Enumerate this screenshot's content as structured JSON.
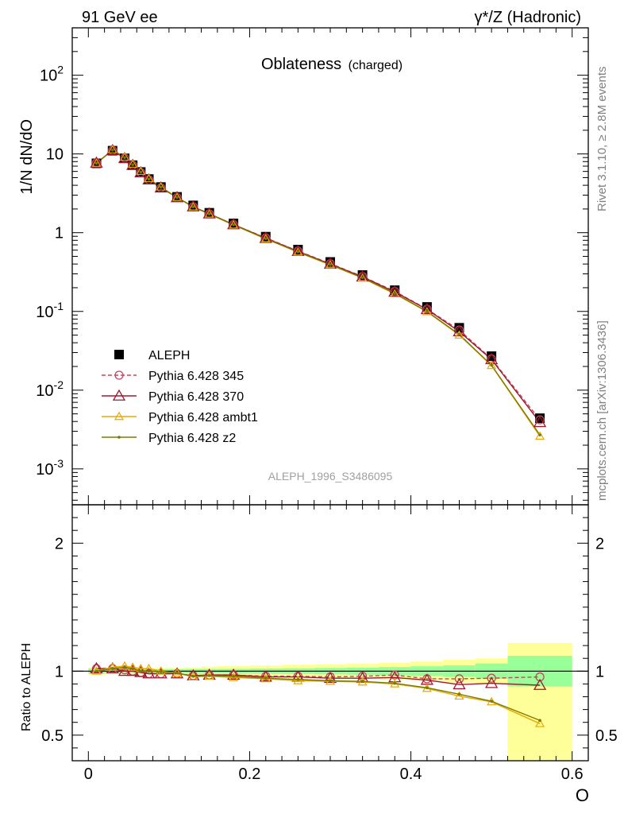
{
  "header": {
    "left_label": "91 GeV ee",
    "right_label": "γ*/Z (Hadronic)"
  },
  "side_text": {
    "rivet": "Rivet 3.1.10, ≥ 2.8M events",
    "mcplots": "mcplots.cern.ch [arXiv:1306.3436]"
  },
  "chart_data": [
    {
      "type": "line",
      "title": "Oblateness",
      "subtitle": "(charged)",
      "ylabel": "1/N dN/dO",
      "yscale": "log",
      "ylim": [
        0.00035,
        400
      ],
      "xlim": [
        -0.02,
        0.62
      ],
      "watermark": "ALEPH_1996_S3486095",
      "legend_position": "lower-left",
      "y_tick_labels": [
        "10^-3",
        "10^-2",
        "10^-1",
        "1",
        "10",
        "10^2"
      ],
      "x": [
        0.01,
        0.03,
        0.045,
        0.055,
        0.065,
        0.075,
        0.09,
        0.11,
        0.13,
        0.15,
        0.18,
        0.22,
        0.26,
        0.3,
        0.34,
        0.38,
        0.42,
        0.46,
        0.5,
        0.56
      ],
      "series": [
        {
          "name": "ALEPH",
          "color": "#000000",
          "style": "data",
          "values": [
            7.6,
            11.0,
            8.8,
            7.2,
            5.9,
            4.8,
            3.8,
            2.85,
            2.22,
            1.79,
            1.31,
            0.89,
            0.61,
            0.425,
            0.29,
            0.186,
            0.114,
            0.062,
            0.027,
            0.0044
          ]
        },
        {
          "name": "Pythia 6.428 345",
          "color": "#c0475f",
          "style": "dashed-circle",
          "values": [
            7.7,
            11.1,
            8.9,
            7.2,
            5.8,
            4.7,
            3.72,
            2.8,
            2.14,
            1.74,
            1.27,
            0.86,
            0.585,
            0.405,
            0.278,
            0.18,
            0.107,
            0.058,
            0.025,
            0.0042
          ]
        },
        {
          "name": "Pythia 6.428 370",
          "color": "#a01830",
          "style": "triangle-open",
          "values": [
            7.7,
            11.1,
            8.8,
            7.2,
            5.8,
            4.7,
            3.72,
            2.8,
            2.14,
            1.74,
            1.27,
            0.85,
            0.58,
            0.4,
            0.275,
            0.177,
            0.106,
            0.0555,
            0.0245,
            0.0039
          ]
        },
        {
          "name": "Pythia 6.428 ambt1",
          "color": "#e8a800",
          "style": "triangle-small",
          "values": [
            7.6,
            11.3,
            9.1,
            7.4,
            6.0,
            4.85,
            3.8,
            2.8,
            2.12,
            1.72,
            1.25,
            0.835,
            0.565,
            0.39,
            0.265,
            0.167,
            0.099,
            0.05,
            0.0205,
            0.0026
          ]
        },
        {
          "name": "Pythia 6.428 z2",
          "color": "#7a7a00",
          "style": "dot",
          "values": [
            7.6,
            11.2,
            9.0,
            7.3,
            5.9,
            4.8,
            3.78,
            2.8,
            2.13,
            1.73,
            1.26,
            0.84,
            0.57,
            0.393,
            0.268,
            0.17,
            0.1,
            0.051,
            0.0207,
            0.0027
          ]
        }
      ]
    },
    {
      "type": "line",
      "ylabel": "Ratio to ALEPH",
      "xlabel": "O",
      "ylim": [
        0.3,
        2.3
      ],
      "xlim": [
        -0.02,
        0.62
      ],
      "x_tick_labels": [
        "0",
        "0.2",
        "0.4",
        "0.6"
      ],
      "y_tick_labels": [
        "0.5",
        "1",
        "2"
      ],
      "band_edges": [
        0,
        0.02,
        0.04,
        0.05,
        0.06,
        0.07,
        0.08,
        0.1,
        0.12,
        0.14,
        0.16,
        0.2,
        0.24,
        0.28,
        0.32,
        0.36,
        0.4,
        0.44,
        0.48,
        0.52,
        0.6
      ],
      "band_inner": [
        0.02,
        0.015,
        0.015,
        0.015,
        0.015,
        0.015,
        0.015,
        0.015,
        0.016,
        0.017,
        0.018,
        0.02,
        0.022,
        0.025,
        0.028,
        0.032,
        0.038,
        0.045,
        0.06,
        0.12
      ],
      "band_outer": [
        0.03,
        0.025,
        0.025,
        0.025,
        0.025,
        0.025,
        0.025,
        0.025,
        0.03,
        0.035,
        0.04,
        0.045,
        0.05,
        0.055,
        0.06,
        0.065,
        0.075,
        0.09,
        0.1,
        0.22
      ],
      "band_outer_last_low": 0.3,
      "band_inner_color": "#99ff99",
      "band_outer_color": "#ffff99",
      "series": [
        {
          "name": "Pythia 6.428 345",
          "color": "#c0475f",
          "values": [
            1.02,
            1.02,
            1.01,
            1.0,
            0.99,
            0.98,
            0.98,
            0.98,
            0.965,
            0.97,
            0.97,
            0.96,
            0.96,
            0.955,
            0.96,
            0.97,
            0.94,
            0.94,
            0.945,
            0.955
          ]
        },
        {
          "name": "Pythia 6.428 370",
          "color": "#a01830",
          "values": [
            1.02,
            1.02,
            1.0,
            1.0,
            0.99,
            0.98,
            0.98,
            0.98,
            0.965,
            0.97,
            0.97,
            0.955,
            0.955,
            0.945,
            0.945,
            0.95,
            0.93,
            0.895,
            0.905,
            0.89
          ]
        },
        {
          "name": "Pythia 6.428 ambt1",
          "color": "#e8a800",
          "values": [
            1.0,
            1.03,
            1.04,
            1.03,
            1.02,
            1.02,
            1.0,
            0.985,
            0.955,
            0.96,
            0.95,
            0.94,
            0.925,
            0.92,
            0.915,
            0.9,
            0.865,
            0.805,
            0.76,
            0.59
          ]
        },
        {
          "name": "Pythia 6.428 z2",
          "color": "#7a7a00",
          "values": [
            1.0,
            1.02,
            1.03,
            1.02,
            1.0,
            1.0,
            0.995,
            0.985,
            0.96,
            0.965,
            0.96,
            0.945,
            0.935,
            0.925,
            0.92,
            0.905,
            0.87,
            0.82,
            0.765,
            0.615
          ]
        }
      ]
    }
  ]
}
